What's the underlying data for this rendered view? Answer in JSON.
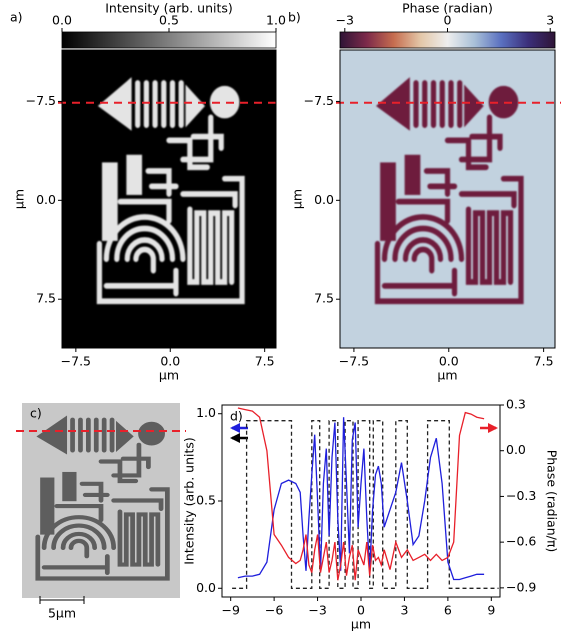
{
  "chart_data": [
    {
      "type": "image",
      "panel_label": "a)",
      "xlabel": "μm",
      "ylabel": "μm",
      "xlim": [
        -8.6,
        8.4
      ],
      "ylim": [
        11.2,
        -11.4
      ],
      "xticks": [
        {
          "value": -7.5,
          "label": "−7.5"
        },
        {
          "value": 0,
          "label": "0.0"
        },
        7.5
      ],
      "yticks": [
        {
          "value": -7.5,
          "label": "−7.5"
        },
        {
          "value": 0,
          "label": "0.0"
        },
        7.5
      ],
      "cut_y": -7.4,
      "cut_color": "#e8202a",
      "background": "#000000",
      "foreground": "#e4e4e4",
      "colorbar": {
        "label": "Intensity (arb. units)",
        "lim": [
          0,
          1
        ],
        "ticks": [
          {
            "value": 0,
            "label": "0.0"
          },
          0.5,
          {
            "value": 1,
            "label": "1.0"
          }
        ],
        "colors": [
          "#000000",
          "#ffffff"
        ]
      }
    },
    {
      "type": "image",
      "panel_label": "b)",
      "xlabel": "μm",
      "ylabel": "μm",
      "xlim": [
        -8.6,
        8.4
      ],
      "ylim": [
        11.2,
        -11.4
      ],
      "xticks": [
        {
          "value": -7.5,
          "label": "−7.5"
        },
        {
          "value": 0,
          "label": "0.0"
        },
        7.5
      ],
      "yticks": [
        {
          "value": -7.5,
          "label": "−7.5"
        },
        {
          "value": 0,
          "label": "0.0"
        },
        7.5
      ],
      "cut_y": -7.4,
      "cut_color": "#e8202a",
      "background": "#c2d2df",
      "foreground": "#6e1f3e",
      "colorbar": {
        "label": "Phase (radian)",
        "lim": [
          -3.14,
          3.14
        ],
        "ticks": [
          {
            "value": -3,
            "label": "−3"
          },
          0,
          3
        ],
        "colors": [
          "#2f1436",
          "#7d2a4a",
          "#c66d4f",
          "#e3c7a8",
          "#eeeeee",
          "#a9c0d8",
          "#5a70c0",
          "#3b2f7a",
          "#2f1436"
        ]
      }
    },
    {
      "type": "line",
      "panel_label": "d)",
      "xlabel": "μm",
      "ylabel": "Intensity (arb. units)",
      "y2label": "Phase (radian/π)",
      "xlim": [
        -9.6,
        9.6
      ],
      "ylim": [
        -0.05,
        1.05
      ],
      "y2lim": [
        -0.96,
        0.3
      ],
      "xticks": [
        {
          "value": -9,
          "label": "−9"
        },
        {
          "value": -6,
          "label": "−6"
        },
        {
          "value": -3,
          "label": "−3"
        },
        0,
        3,
        6,
        9
      ],
      "yticks": [
        {
          "value": 0,
          "label": "0.0"
        },
        0.5,
        {
          "value": 1,
          "label": "1.0"
        }
      ],
      "y2ticks": [
        0.3,
        {
          "value": 0,
          "label": "0.0"
        },
        {
          "value": -0.3,
          "label": "−0.3"
        },
        {
          "value": -0.6,
          "label": "−0.6"
        },
        {
          "value": -0.9,
          "label": "−0.9"
        }
      ],
      "series": [
        {
          "color": "#222222",
          "dashed": true,
          "x": [
            -8.9,
            -7.9,
            -7.9,
            -4.8,
            -4.8,
            -3.4,
            -3.4,
            -2.85,
            -2.85,
            -2.2,
            -2.2,
            -1.6,
            -1.6,
            -1.1,
            -1.1,
            -0.55,
            -0.55,
            -0.2,
            -0.2,
            0.6,
            0.6,
            0.85,
            0.85,
            1.5,
            1.5,
            2.4,
            2.4,
            3.2,
            3.2,
            4.6,
            4.6,
            6.1,
            6.1,
            9.5
          ],
          "values": [
            0,
            0,
            0.96,
            0.96,
            0,
            0,
            0.96,
            0.96,
            0,
            0,
            0.96,
            0.96,
            0,
            0,
            0.96,
            0.96,
            0,
            0,
            0.96,
            0.96,
            0,
            0,
            0.96,
            0.96,
            0,
            0,
            0.96,
            0.96,
            0,
            0,
            0.96,
            0.96,
            0,
            0
          ]
        },
        {
          "color": "#1f1fdc",
          "x": [
            -8.5,
            -8,
            -7.5,
            -7,
            -6.5,
            -6,
            -5.5,
            -5,
            -4.5,
            -4.2,
            -4,
            -3.8,
            -3.6,
            -3.4,
            -3.2,
            -3,
            -2.8,
            -2.6,
            -2.4,
            -2.2,
            -2,
            -1.8,
            -1.6,
            -1.4,
            -1.2,
            -1,
            -0.8,
            -0.6,
            -0.4,
            -0.2,
            0,
            0.2,
            0.4,
            0.6,
            0.8,
            1,
            1.2,
            1.4,
            1.6,
            2,
            2.4,
            2.8,
            3.2,
            3.6,
            4,
            4.4,
            4.8,
            5.2,
            5.6,
            6,
            6.4,
            6.8,
            7.2,
            7.6,
            8,
            8.5
          ],
          "values": [
            0.06,
            0.07,
            0.07,
            0.08,
            0.15,
            0.45,
            0.6,
            0.62,
            0.6,
            0.55,
            0.3,
            0.1,
            0.4,
            0.65,
            0.88,
            0.5,
            0.1,
            0.6,
            0.8,
            0.3,
            0.75,
            0.95,
            0.4,
            0.1,
            0.98,
            0.6,
            0.2,
            0.85,
            0.95,
            0.35,
            0.6,
            0.8,
            0.4,
            0.1,
            0.45,
            0.65,
            0.7,
            0.6,
            0.35,
            0.45,
            0.55,
            0.72,
            0.5,
            0.25,
            0.3,
            0.5,
            0.75,
            0.86,
            0.6,
            0.15,
            0.05,
            0.05,
            0.06,
            0.07,
            0.08,
            0.08
          ]
        },
        {
          "color": "#e8202a",
          "axis": "y2",
          "x": [
            -8.5,
            -8,
            -7.5,
            -7,
            -6.5,
            -6,
            -5.5,
            -5,
            -4.5,
            -4.2,
            -4,
            -3.8,
            -3.6,
            -3.4,
            -3.2,
            -3,
            -2.8,
            -2.6,
            -2.4,
            -2.2,
            -2,
            -1.8,
            -1.6,
            -1.4,
            -1.2,
            -1,
            -0.8,
            -0.6,
            -0.4,
            -0.2,
            0,
            0.2,
            0.4,
            0.6,
            0.8,
            1,
            1.2,
            1.4,
            1.6,
            2,
            2.4,
            2.8,
            3.2,
            3.6,
            4,
            4.4,
            4.8,
            5.2,
            5.6,
            6,
            6.4,
            6.8,
            7.2,
            7.6,
            8,
            8.5
          ],
          "values": [
            0.28,
            0.27,
            0.26,
            0.22,
            0.0,
            -0.55,
            -0.62,
            -0.7,
            -0.74,
            -0.72,
            -0.65,
            -0.55,
            -0.75,
            -0.8,
            -0.65,
            -0.55,
            -0.8,
            -0.7,
            -0.6,
            -0.8,
            -0.72,
            -0.6,
            -0.85,
            -0.75,
            -0.6,
            -0.82,
            -0.7,
            -0.62,
            -0.85,
            -0.65,
            -0.7,
            -0.75,
            -0.6,
            -0.82,
            -0.62,
            -0.72,
            -0.7,
            -0.75,
            -0.65,
            -0.78,
            -0.6,
            -0.7,
            -0.65,
            -0.72,
            -0.7,
            -0.68,
            -0.72,
            -0.68,
            -0.72,
            -0.7,
            -0.6,
            0.1,
            0.25,
            0.24,
            0.22,
            0.21
          ]
        }
      ]
    }
  ],
  "photo": {
    "label": "c)",
    "scale_bar": "5μm"
  }
}
